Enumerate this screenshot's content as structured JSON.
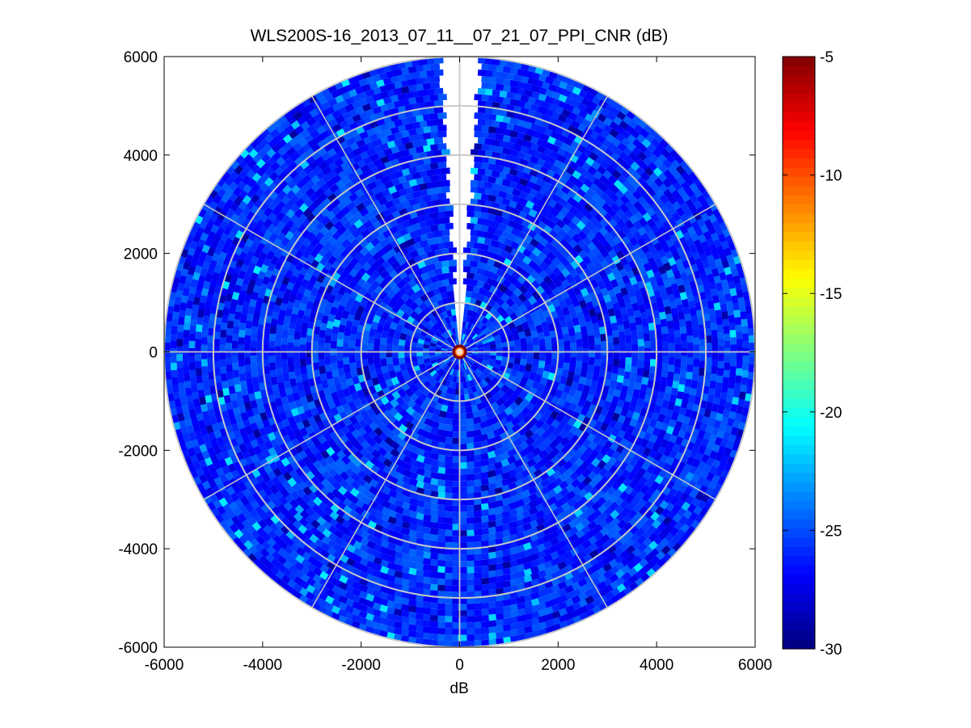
{
  "chart_data": {
    "type": "heatmap",
    "projection": "polar (PPI scan)",
    "title": "WLS200S-16_2013_07_11__07_21_07_PPI_CNR (dB)",
    "xlabel": "dB",
    "ylabel": "",
    "xlim": [
      -6000,
      6000
    ],
    "ylim": [
      -6000,
      6000
    ],
    "x_ticks": [
      -6000,
      -4000,
      -2000,
      0,
      2000,
      4000,
      6000
    ],
    "y_ticks": [
      -6000,
      -4000,
      -2000,
      0,
      2000,
      4000,
      6000
    ],
    "max_range": 6000,
    "range_ring_spacing": 1000,
    "radial_line_spacing_deg": 30,
    "missing_sector_azimuth_deg": [
      -4,
      4
    ],
    "grid": true,
    "colorbar": {
      "colormap": "jet",
      "clim": [
        -30,
        -5
      ],
      "ticks": [
        -5,
        -10,
        -15,
        -20,
        -25,
        -30
      ],
      "placement": "right"
    },
    "field_summary": {
      "typical_cnr_db": -26,
      "range_db": [
        -29.5,
        -20
      ],
      "center_cnr_db": -5
    }
  }
}
